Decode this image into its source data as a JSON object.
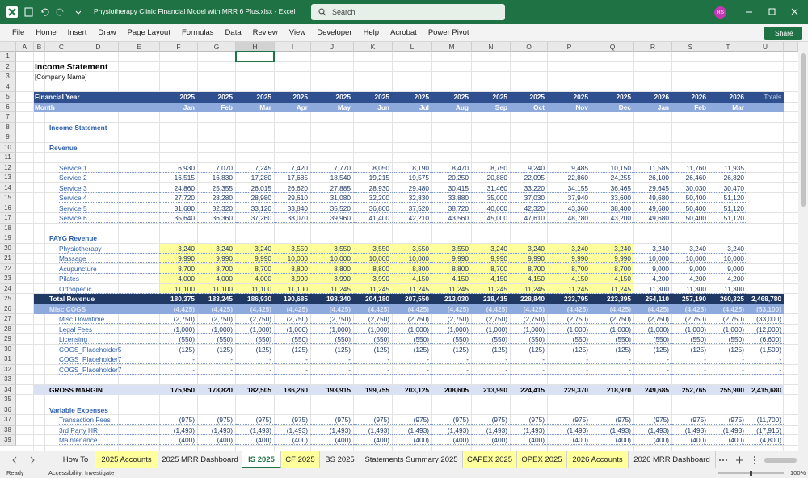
{
  "title_bar": {
    "file_title": "Physiotherapy Clinic Financial Model with MRR 6 Plus.xlsx  -  Excel",
    "search_placeholder": "Search",
    "user": "RS"
  },
  "menu": {
    "tabs": [
      "File",
      "Home",
      "Insert",
      "Draw",
      "Page Layout",
      "Formulas",
      "Data",
      "Review",
      "View",
      "Developer",
      "Help",
      "Acrobat",
      "Power Pivot"
    ],
    "share": "Share"
  },
  "column_headers": [
    "A",
    "B",
    "C",
    "D",
    "E",
    "F",
    "G",
    "H",
    "I",
    "J",
    "K",
    "L",
    "M",
    "N",
    "O",
    "P",
    "Q",
    "R",
    "S",
    "T",
    "U"
  ],
  "rows": [
    {
      "n": 1
    },
    {
      "n": 2,
      "label": "Income Statement"
    },
    {
      "n": 3,
      "label": "[Company Name]"
    },
    {
      "n": 4
    },
    {
      "n": 5,
      "label": "Financial Year",
      "values": [
        "2025",
        "2025",
        "2025",
        "2025",
        "2025",
        "2025",
        "2025",
        "2025",
        "2025",
        "2025",
        "2025",
        "2025",
        "2026",
        "2026",
        "2026"
      ],
      "total": "Totals"
    },
    {
      "n": 6,
      "label": "Month",
      "values": [
        "Jan",
        "Feb",
        "Mar",
        "Apr",
        "May",
        "Jun",
        "Jul",
        "Aug",
        "Sep",
        "Oct",
        "Nov",
        "Dec",
        "Jan",
        "Feb",
        "Mar"
      ]
    },
    {
      "n": 7
    },
    {
      "n": 8,
      "label": "Income Statement"
    },
    {
      "n": 9
    },
    {
      "n": 10,
      "label": "Revenue"
    },
    {
      "n": 11
    },
    {
      "n": 12,
      "label": "Service 1",
      "values": [
        "6,930",
        "7,070",
        "7,245",
        "7,420",
        "7,770",
        "8,050",
        "8,190",
        "8,470",
        "8,750",
        "9,240",
        "9,485",
        "10,150",
        "11,585",
        "11,760",
        "11,935"
      ]
    },
    {
      "n": 13,
      "label": "Service 2",
      "values": [
        "16,515",
        "16,830",
        "17,280",
        "17,685",
        "18,540",
        "19,215",
        "19,575",
        "20,250",
        "20,880",
        "22,095",
        "22,860",
        "24,255",
        "26,100",
        "26,460",
        "26,820"
      ]
    },
    {
      "n": 14,
      "label": "Service 3",
      "values": [
        "24,860",
        "25,355",
        "26,015",
        "26,620",
        "27,885",
        "28,930",
        "29,480",
        "30,415",
        "31,460",
        "33,220",
        "34,155",
        "36,465",
        "29,645",
        "30,030",
        "30,470"
      ]
    },
    {
      "n": 15,
      "label": "Service 4",
      "values": [
        "27,720",
        "28,280",
        "28,980",
        "29,610",
        "31,080",
        "32,200",
        "32,830",
        "33,880",
        "35,000",
        "37,030",
        "37,940",
        "33,600",
        "49,680",
        "50,400",
        "51,120"
      ]
    },
    {
      "n": 16,
      "label": "Service 5",
      "values": [
        "31,680",
        "32,320",
        "33,120",
        "33,840",
        "35,520",
        "36,800",
        "37,520",
        "38,720",
        "40,000",
        "42,320",
        "43,360",
        "38,400",
        "49,680",
        "50,400",
        "51,120"
      ]
    },
    {
      "n": 17,
      "label": "Service 6",
      "values": [
        "35,640",
        "36,360",
        "37,260",
        "38,070",
        "39,960",
        "41,400",
        "42,210",
        "43,560",
        "45,000",
        "47,610",
        "48,780",
        "43,200",
        "49,680",
        "50,400",
        "51,120"
      ]
    },
    {
      "n": 18
    },
    {
      "n": 19,
      "label": "PAYG Revenue"
    },
    {
      "n": 20,
      "label": "Physiotherapy",
      "values": [
        "3,240",
        "3,240",
        "3,240",
        "3,550",
        "3,550",
        "3,550",
        "3,550",
        "3,550",
        "3,240",
        "3,240",
        "3,240",
        "3,240",
        "3,240",
        "3,240",
        "3,240"
      ]
    },
    {
      "n": 21,
      "label": "Massage",
      "values": [
        "9,990",
        "9,990",
        "9,990",
        "10,000",
        "10,000",
        "10,000",
        "10,000",
        "9,990",
        "9,990",
        "9,990",
        "9,990",
        "9,990",
        "10,000",
        "10,000",
        "10,000"
      ]
    },
    {
      "n": 22,
      "label": "Acupuncture",
      "values": [
        "8,700",
        "8,700",
        "8,700",
        "8,800",
        "8,800",
        "8,800",
        "8,800",
        "8,800",
        "8,700",
        "8,700",
        "8,700",
        "8,700",
        "9,000",
        "9,000",
        "9,000"
      ]
    },
    {
      "n": 23,
      "label": "Pilates",
      "values": [
        "4,000",
        "4,000",
        "4,000",
        "3,990",
        "3,990",
        "3,990",
        "4,150",
        "4,150",
        "4,150",
        "4,150",
        "4,150",
        "4,150",
        "4,200",
        "4,200",
        "4,200"
      ]
    },
    {
      "n": 24,
      "label": "Orthopedic",
      "values": [
        "11,100",
        "11,100",
        "11,100",
        "11,100",
        "11,245",
        "11,245",
        "11,245",
        "11,245",
        "11,245",
        "11,245",
        "11,245",
        "11,245",
        "11,300",
        "11,300",
        "11,300"
      ]
    },
    {
      "n": 25,
      "label": "Total Revenue",
      "values": [
        "180,375",
        "183,245",
        "186,930",
        "190,685",
        "198,340",
        "204,180",
        "207,550",
        "213,030",
        "218,415",
        "228,840",
        "233,795",
        "223,395",
        "254,110",
        "257,190",
        "260,325"
      ],
      "total": "2,468,780"
    },
    {
      "n": 26,
      "label": "Misc COGS",
      "values": [
        "(4,425)",
        "(4,425)",
        "(4,425)",
        "(4,425)",
        "(4,425)",
        "(4,425)",
        "(4,425)",
        "(4,425)",
        "(4,425)",
        "(4,425)",
        "(4,425)",
        "(4,425)",
        "(4,425)",
        "(4,425)",
        "(4,425)"
      ],
      "total": "(53,100)"
    },
    {
      "n": 27,
      "label": "Misc Downtime",
      "values": [
        "(2,750)",
        "(2,750)",
        "(2,750)",
        "(2,750)",
        "(2,750)",
        "(2,750)",
        "(2,750)",
        "(2,750)",
        "(2,750)",
        "(2,750)",
        "(2,750)",
        "(2,750)",
        "(2,750)",
        "(2,750)",
        "(2,750)"
      ],
      "total": "(33,000)"
    },
    {
      "n": 28,
      "label": "Legal Fees",
      "values": [
        "(1,000)",
        "(1,000)",
        "(1,000)",
        "(1,000)",
        "(1,000)",
        "(1,000)",
        "(1,000)",
        "(1,000)",
        "(1,000)",
        "(1,000)",
        "(1,000)",
        "(1,000)",
        "(1,000)",
        "(1,000)",
        "(1,000)"
      ],
      "total": "(12,000)"
    },
    {
      "n": 29,
      "label": "Licensing",
      "values": [
        "(550)",
        "(550)",
        "(550)",
        "(550)",
        "(550)",
        "(550)",
        "(550)",
        "(550)",
        "(550)",
        "(550)",
        "(550)",
        "(550)",
        "(550)",
        "(550)",
        "(550)"
      ],
      "total": "(6,600)"
    },
    {
      "n": 30,
      "label": "COGS_Placeholder5",
      "values": [
        "(125)",
        "(125)",
        "(125)",
        "(125)",
        "(125)",
        "(125)",
        "(125)",
        "(125)",
        "(125)",
        "(125)",
        "(125)",
        "(125)",
        "(125)",
        "(125)",
        "(125)"
      ],
      "total": "(1,500)"
    },
    {
      "n": 31,
      "label": "COGS_Placeholder7",
      "values": [
        "-",
        "-",
        "-",
        "-",
        "-",
        "-",
        "-",
        "-",
        "-",
        "-",
        "-",
        "-",
        "-",
        "-",
        "-"
      ],
      "total": "-"
    },
    {
      "n": 32,
      "label": "COGS_Placeholder7",
      "values": [
        "-",
        "-",
        "-",
        "-",
        "-",
        "-",
        "-",
        "-",
        "-",
        "-",
        "-",
        "-",
        "-",
        "-",
        "-"
      ],
      "total": "-"
    },
    {
      "n": 33
    },
    {
      "n": 34,
      "label": "GROSS MARGIN",
      "values": [
        "175,950",
        "178,820",
        "182,505",
        "186,260",
        "193,915",
        "199,755",
        "203,125",
        "208,605",
        "213,990",
        "224,415",
        "229,370",
        "218,970",
        "249,685",
        "252,765",
        "255,900"
      ],
      "total": "2,415,680"
    },
    {
      "n": 35
    },
    {
      "n": 36,
      "label": "Variable Expenses"
    },
    {
      "n": 37,
      "label": "Transaction Fees",
      "values": [
        "(975)",
        "(975)",
        "(975)",
        "(975)",
        "(975)",
        "(975)",
        "(975)",
        "(975)",
        "(975)",
        "(975)",
        "(975)",
        "(975)",
        "(975)",
        "(975)",
        "(975)"
      ],
      "total": "(11,700)"
    },
    {
      "n": 38,
      "label": "3rd Party HR",
      "values": [
        "(1,493)",
        "(1,493)",
        "(1,493)",
        "(1,493)",
        "(1,493)",
        "(1,493)",
        "(1,493)",
        "(1,493)",
        "(1,493)",
        "(1,493)",
        "(1,493)",
        "(1,493)",
        "(1,493)",
        "(1,493)",
        "(1,493)"
      ],
      "total": "(17,916)"
    },
    {
      "n": 39,
      "label": "Maintenance",
      "values": [
        "(400)",
        "(400)",
        "(400)",
        "(400)",
        "(400)",
        "(400)",
        "(400)",
        "(400)",
        "(400)",
        "(400)",
        "(400)",
        "(400)",
        "(400)",
        "(400)",
        "(400)"
      ],
      "total": "(4,800)"
    }
  ],
  "sheet_tabs": [
    "How To",
    "2025 Accounts",
    "2025 MRR Dashboard",
    "IS 2025",
    "CF 2025",
    "BS 2025",
    "Statements Summary 2025",
    "CAPEX 2025",
    "OPEX 2025",
    "2026 Accounts",
    "2026 MRR Dashboard"
  ],
  "status_bar": {
    "mode": "Ready",
    "accessibility": "Accessibility: Investigate",
    "zoom": "100%"
  }
}
